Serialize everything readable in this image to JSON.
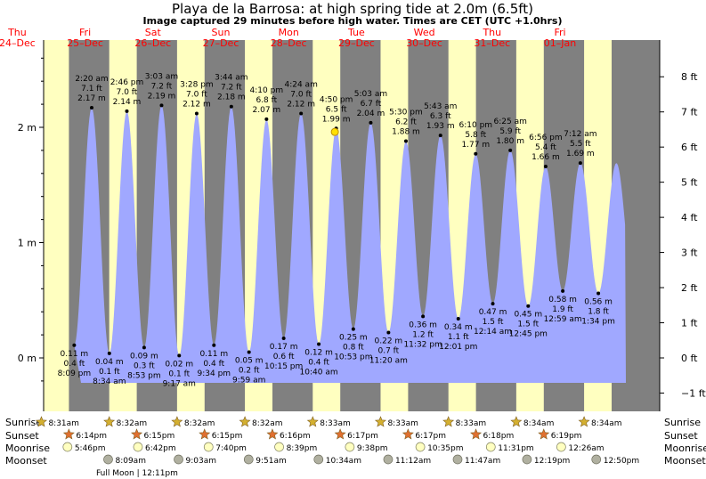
{
  "title": "Playa de la Barrosa: at high  spring tide at 2.0m (6.5ft)",
  "subtitle": "Image captured 29 minutes before high water. Times are CET (UTC +1.0hrs)",
  "days": [
    {
      "dow": "Thu",
      "date": "24–Dec"
    },
    {
      "dow": "Fri",
      "date": "25–Dec"
    },
    {
      "dow": "Sat",
      "date": "26–Dec"
    },
    {
      "dow": "Sun",
      "date": "27–Dec"
    },
    {
      "dow": "Mon",
      "date": "28–Dec"
    },
    {
      "dow": "Tue",
      "date": "29–Dec"
    },
    {
      "dow": "Wed",
      "date": "30–Dec"
    },
    {
      "dow": "Thu",
      "date": "31–Dec"
    },
    {
      "dow": "Fri",
      "date": "01–Jan"
    }
  ],
  "row_labels": {
    "sunrise": "Sunrise",
    "sunset": "Sunset",
    "moonrise": "Moonrise",
    "moonset": "Moonset"
  },
  "sunrise": [
    "8:31am",
    "8:32am",
    "8:32am",
    "8:32am",
    "8:33am",
    "8:33am",
    "8:33am",
    "8:34am",
    "8:34am"
  ],
  "sunset": [
    "6:14pm",
    "6:15pm",
    "6:15pm",
    "6:16pm",
    "6:17pm",
    "6:17pm",
    "6:18pm",
    "6:19pm"
  ],
  "moonrise": [
    "5:46pm",
    "6:42pm",
    "7:40pm",
    "8:39pm",
    "9:38pm",
    "10:35pm",
    "11:31pm",
    "12:26am"
  ],
  "moonset": [
    "8:09am",
    "9:03am",
    "9:51am",
    "10:34am",
    "11:12am",
    "11:47am",
    "12:19pm",
    "12:50pm"
  ],
  "moon_phase_note": "Full Moon | 12:11pm",
  "colors": {
    "night": "#808080",
    "day": "#ffffc0",
    "water": "#a0a8ff",
    "star": "#d4b030",
    "sunset_star": "#e07030",
    "moon_disc": "#ffffc0",
    "moonset_disc": "#b0b0a0"
  },
  "chart_data": {
    "type": "area",
    "title": "Playa de la Barrosa: at high  spring tide at 2.0m (6.5ft)",
    "y_left": {
      "label": "m",
      "ticks": [
        "0 m",
        "1 m",
        "2 m"
      ],
      "range": [
        -0.37,
        2.7
      ]
    },
    "y_right": {
      "label": "ft",
      "ticks": [
        "−1 ft",
        "0 ft",
        "1 ft",
        "2 ft",
        "3 ft",
        "4 ft",
        "5 ft",
        "6 ft",
        "7 ft",
        "8 ft"
      ]
    },
    "extremes": [
      {
        "type": "low",
        "time": "8:09 pm",
        "ft": "0.4 ft",
        "m": "0.11 m",
        "day": 0,
        "hour": 20.15,
        "height": 0.11
      },
      {
        "type": "high",
        "time": "2:20 am",
        "ft": "7.1 ft",
        "m": "2.17 m",
        "day": 1,
        "hour": 2.33,
        "height": 2.17
      },
      {
        "type": "low",
        "time": "8:34 am",
        "ft": "0.1 ft",
        "m": "0.04 m",
        "day": 1,
        "hour": 8.57,
        "height": 0.04
      },
      {
        "type": "high",
        "time": "2:46 pm",
        "ft": "7.0 ft",
        "m": "2.14 m",
        "day": 1,
        "hour": 14.77,
        "height": 2.14
      },
      {
        "type": "low",
        "time": "8:53 pm",
        "ft": "0.3 ft",
        "m": "0.09 m",
        "day": 1,
        "hour": 20.88,
        "height": 0.09
      },
      {
        "type": "high",
        "time": "3:03 am",
        "ft": "7.2 ft",
        "m": "2.19 m",
        "day": 2,
        "hour": 3.05,
        "height": 2.19
      },
      {
        "type": "low",
        "time": "9:17 am",
        "ft": "0.1 ft",
        "m": "0.02 m",
        "day": 2,
        "hour": 9.28,
        "height": 0.02
      },
      {
        "type": "high",
        "time": "3:28 pm",
        "ft": "7.0 ft",
        "m": "2.12 m",
        "day": 2,
        "hour": 15.47,
        "height": 2.12
      },
      {
        "type": "low",
        "time": "9:34 pm",
        "ft": "0.4 ft",
        "m": "0.11 m",
        "day": 2,
        "hour": 21.57,
        "height": 0.11
      },
      {
        "type": "high",
        "time": "3:44 am",
        "ft": "7.2 ft",
        "m": "2.18 m",
        "day": 3,
        "hour": 3.73,
        "height": 2.18
      },
      {
        "type": "low",
        "time": "9:59 am",
        "ft": "0.2 ft",
        "m": "0.05 m",
        "day": 3,
        "hour": 9.98,
        "height": 0.05
      },
      {
        "type": "high",
        "time": "4:10 pm",
        "ft": "6.8 ft",
        "m": "2.07 m",
        "day": 3,
        "hour": 16.17,
        "height": 2.07
      },
      {
        "type": "low",
        "time": "10:15 pm",
        "ft": "0.6 ft",
        "m": "0.17 m",
        "day": 3,
        "hour": 22.25,
        "height": 0.17
      },
      {
        "type": "high",
        "time": "4:24 am",
        "ft": "7.0 ft",
        "m": "2.12 m",
        "day": 4,
        "hour": 4.4,
        "height": 2.12
      },
      {
        "type": "low",
        "time": "10:40 am",
        "ft": "0.4 ft",
        "m": "0.12 m",
        "day": 4,
        "hour": 10.67,
        "height": 0.12
      },
      {
        "type": "high",
        "time": "4:50 pm",
        "ft": "6.5 ft",
        "m": "1.99 m",
        "day": 4,
        "hour": 16.83,
        "height": 1.99
      },
      {
        "type": "low",
        "time": "10:53 pm",
        "ft": "0.8 ft",
        "m": "0.25 m",
        "day": 4,
        "hour": 22.88,
        "height": 0.25
      },
      {
        "type": "high",
        "time": "5:03 am",
        "ft": "6.7 ft",
        "m": "2.04 m",
        "day": 5,
        "hour": 5.05,
        "height": 2.04
      },
      {
        "type": "low",
        "time": "11:20 am",
        "ft": "0.7 ft",
        "m": "0.22 m",
        "day": 5,
        "hour": 11.33,
        "height": 0.22
      },
      {
        "type": "high",
        "time": "5:30 pm",
        "ft": "6.2 ft",
        "m": "1.88 m",
        "day": 5,
        "hour": 17.5,
        "height": 1.88
      },
      {
        "type": "low",
        "time": "11:32 pm",
        "ft": "1.2 ft",
        "m": "0.36 m",
        "day": 5,
        "hour": 23.53,
        "height": 0.36
      },
      {
        "type": "high",
        "time": "5:43 am",
        "ft": "6.3 ft",
        "m": "1.93 m",
        "day": 6,
        "hour": 5.72,
        "height": 1.93
      },
      {
        "type": "low",
        "time": "12:01 pm",
        "ft": "1.1 ft",
        "m": "0.34 m",
        "day": 6,
        "hour": 12.02,
        "height": 0.34
      },
      {
        "type": "high",
        "time": "6:10 pm",
        "ft": "5.8 ft",
        "m": "1.77 m",
        "day": 6,
        "hour": 18.17,
        "height": 1.77
      },
      {
        "type": "low",
        "time": "12:14 am",
        "ft": "1.5 ft",
        "m": "0.47 m",
        "day": 7,
        "hour": 0.23,
        "height": 0.47
      },
      {
        "type": "high",
        "time": "6:25 am",
        "ft": "5.9 ft",
        "m": "1.80 m",
        "day": 7,
        "hour": 6.42,
        "height": 1.8
      },
      {
        "type": "low",
        "time": "12:45 pm",
        "ft": "1.5 ft",
        "m": "0.45 m",
        "day": 7,
        "hour": 12.75,
        "height": 0.45
      },
      {
        "type": "high",
        "time": "6:56 pm",
        "ft": "5.4 ft",
        "m": "1.66 m",
        "day": 7,
        "hour": 18.93,
        "height": 1.66
      },
      {
        "type": "low",
        "time": "12:59 am",
        "ft": "1.9 ft",
        "m": "0.58 m",
        "day": 8,
        "hour": 0.98,
        "height": 0.58
      },
      {
        "type": "high",
        "time": "7:12 am",
        "ft": "5.5 ft",
        "m": "1.69 m",
        "day": 8,
        "hour": 7.2,
        "height": 1.69
      },
      {
        "type": "low",
        "time": "1:34 pm",
        "ft": "1.8 ft",
        "m": "0.56 m",
        "day": 8,
        "hour": 13.57,
        "height": 0.56
      }
    ],
    "current": {
      "day": 4,
      "hour": 16.35,
      "height": 1.96
    }
  }
}
